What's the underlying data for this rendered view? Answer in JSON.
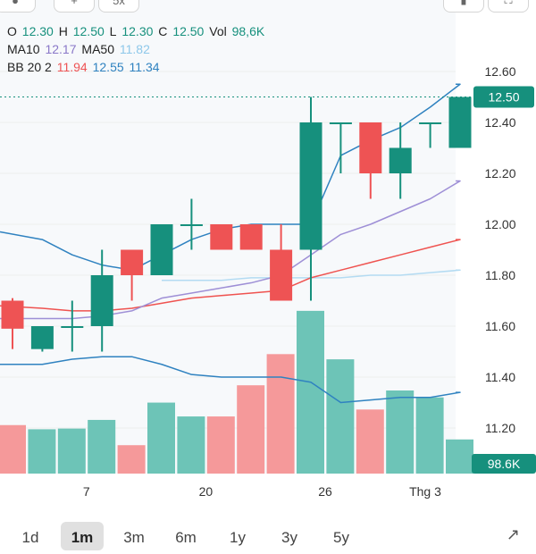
{
  "legend": {
    "row1": {
      "o_label": "O",
      "o_value": "12.30",
      "h_label": "H",
      "h_value": "12.50",
      "l_label": "L",
      "l_value": "12.30",
      "c_label": "C",
      "c_value": "12.50",
      "vol_label": "Vol",
      "vol_value": "98,6K"
    },
    "row2": {
      "ma10_label": "MA10",
      "ma10_value": "12.17",
      "ma50_label": "MA50",
      "ma50_value": "11.82"
    },
    "row3": {
      "bb_label": "BB 20 2",
      "bb_mid": "11.94",
      "bb_upper": "12.55",
      "bb_lower": "11.34"
    }
  },
  "top_buttons": [
    "",
    "+",
    "5x",
    "",
    ""
  ],
  "timeframes": [
    {
      "label": "1d",
      "active": false
    },
    {
      "label": "1m",
      "active": true
    },
    {
      "label": "3m",
      "active": false
    },
    {
      "label": "6m",
      "active": false
    },
    {
      "label": "1y",
      "active": false
    },
    {
      "label": "3y",
      "active": false
    },
    {
      "label": "5y",
      "active": false
    }
  ],
  "colors": {
    "up": "#16907d",
    "down": "#ee5354",
    "vol_up": "#6dc4b7",
    "vol_down": "#f5999a",
    "bb": "#2f82c0",
    "ma10": "#9e8fd6",
    "ma50": "#b3dbf2",
    "mid": "#ef5350",
    "grid": "#eeeeee",
    "axis_text": "#333333",
    "dotted": "#16907d"
  },
  "chart_data": {
    "type": "candlestick",
    "price_axis": {
      "ticks": [
        "12.60",
        "12.40",
        "12.20",
        "12.00",
        "11.80",
        "11.60",
        "11.40",
        "11.20"
      ],
      "range": [
        11.16,
        12.72
      ],
      "current_price": "12.50",
      "current_volume": "98.6K"
    },
    "x_ticks": [
      {
        "label": "7",
        "index": 2
      },
      {
        "label": "20",
        "index": 6
      },
      {
        "label": "26",
        "index": 10
      },
      {
        "label": "Thg 3",
        "index": 14
      }
    ],
    "candles": [
      {
        "o": 11.7,
        "h": 11.71,
        "l": 11.51,
        "c": 11.59
      },
      {
        "o": 11.51,
        "h": 11.6,
        "l": 11.5,
        "c": 11.6
      },
      {
        "o": 11.6,
        "h": 11.7,
        "l": 11.5,
        "c": 11.6
      },
      {
        "o": 11.6,
        "h": 11.9,
        "l": 11.5,
        "c": 11.8
      },
      {
        "o": 11.9,
        "h": 11.9,
        "l": 11.7,
        "c": 11.8
      },
      {
        "o": 11.8,
        "h": 12.0,
        "l": 11.8,
        "c": 12.0
      },
      {
        "o": 12.0,
        "h": 12.1,
        "l": 11.9,
        "c": 12.0
      },
      {
        "o": 12.0,
        "h": 12.0,
        "l": 11.9,
        "c": 11.9
      },
      {
        "o": 12.0,
        "h": 12.0,
        "l": 11.9,
        "c": 11.9
      },
      {
        "o": 11.9,
        "h": 12.0,
        "l": 11.7,
        "c": 11.7
      },
      {
        "o": 11.9,
        "h": 12.5,
        "l": 11.7,
        "c": 12.4
      },
      {
        "o": 12.4,
        "h": 12.4,
        "l": 12.2,
        "c": 12.4
      },
      {
        "o": 12.4,
        "h": 12.4,
        "l": 12.1,
        "c": 12.2
      },
      {
        "o": 12.2,
        "h": 12.4,
        "l": 12.1,
        "c": 12.3
      },
      {
        "o": 12.4,
        "h": 12.4,
        "l": 12.3,
        "c": 12.4
      },
      {
        "o": 12.3,
        "h": 12.5,
        "l": 12.3,
        "c": 12.5
      }
    ],
    "volume_max_k": 400,
    "volumes_k": [
      140,
      128,
      130,
      155,
      82,
      205,
      165,
      165,
      255,
      345,
      470,
      330,
      185,
      240,
      220,
      98.6
    ],
    "bb_upper": [
      11.97,
      11.94,
      11.88,
      11.84,
      11.82,
      11.88,
      11.94,
      11.98,
      12.0,
      12.0,
      12.0,
      12.27,
      12.33,
      12.38,
      12.46,
      12.55
    ],
    "bb_lower": [
      11.45,
      11.45,
      11.47,
      11.48,
      11.48,
      11.45,
      11.41,
      11.4,
      11.4,
      11.4,
      11.38,
      11.3,
      11.31,
      11.32,
      11.32,
      11.34
    ],
    "ma10": [
      11.63,
      11.63,
      11.63,
      11.64,
      11.66,
      11.71,
      11.73,
      11.75,
      11.77,
      11.8,
      11.88,
      11.96,
      12.0,
      12.05,
      12.1,
      12.17
    ],
    "ma50": [
      null,
      null,
      null,
      null,
      null,
      11.78,
      11.78,
      11.78,
      11.79,
      11.79,
      11.79,
      11.79,
      11.8,
      11.8,
      11.81,
      11.82
    ],
    "bb_mid": [
      11.68,
      11.67,
      11.66,
      11.66,
      11.67,
      11.69,
      11.71,
      11.72,
      11.73,
      11.74,
      11.79,
      11.82,
      11.85,
      11.88,
      11.91,
      11.94
    ]
  }
}
